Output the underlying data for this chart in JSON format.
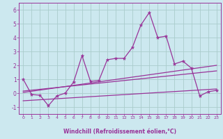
{
  "bg_color": "#cce8ef",
  "grid_color": "#aacccc",
  "line_color": "#993399",
  "xlabel": "Windchill (Refroidissement éolien,°C)",
  "xlim": [
    -0.5,
    23.5
  ],
  "ylim": [
    -1.5,
    6.5
  ],
  "yticks": [
    -1,
    0,
    1,
    2,
    3,
    4,
    5,
    6
  ],
  "xticks": [
    0,
    1,
    2,
    3,
    4,
    5,
    6,
    7,
    8,
    9,
    10,
    11,
    12,
    13,
    14,
    15,
    16,
    17,
    18,
    19,
    20,
    21,
    22,
    23
  ],
  "series1_x": [
    0,
    1,
    2,
    3,
    4,
    5,
    6,
    7,
    8,
    9,
    10,
    11,
    12,
    13,
    14,
    15,
    16,
    17,
    18,
    19,
    20,
    21,
    22,
    23
  ],
  "series1_y": [
    1.0,
    -0.1,
    -0.15,
    -0.9,
    -0.2,
    0.0,
    0.8,
    2.7,
    0.85,
    0.9,
    2.4,
    2.5,
    2.5,
    3.3,
    4.9,
    5.8,
    4.0,
    4.1,
    2.1,
    2.3,
    1.8,
    -0.2,
    0.1,
    0.2
  ],
  "series2_x": [
    0,
    23
  ],
  "series2_y": [
    0.05,
    2.0
  ],
  "series3_x": [
    0,
    23
  ],
  "series3_y": [
    0.15,
    1.6
  ],
  "series4_x": [
    0,
    23
  ],
  "series4_y": [
    -0.55,
    0.3
  ]
}
